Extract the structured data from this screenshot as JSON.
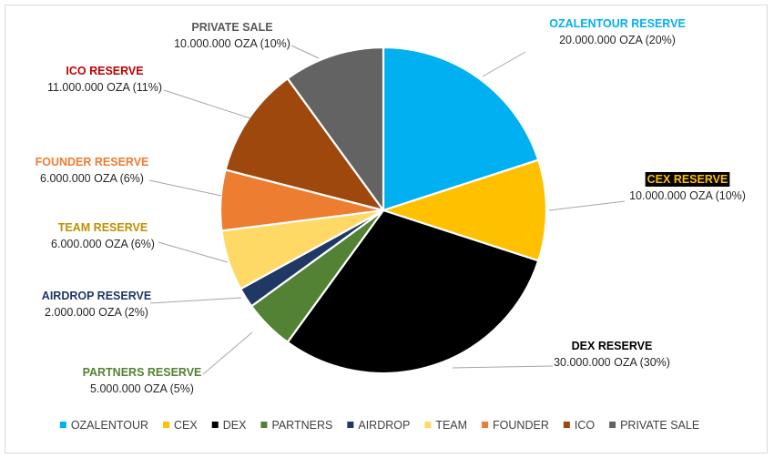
{
  "chart_data": {
    "type": "pie",
    "title": "",
    "start_angle_deg": 0,
    "direction": "clockwise",
    "slices": [
      {
        "legend": "OZALENTOUR",
        "label": "OZALENTOUR RESERVE",
        "value_text": "20.000.000 OZA (20%)",
        "value": 20000000,
        "percent": 20,
        "color": "#00b0f0",
        "label_color": "#00b0f0",
        "highlight": false
      },
      {
        "legend": "CEX",
        "label": "CEX RESERVE",
        "value_text": "10.000.000 OZA (10%)",
        "value": 10000000,
        "percent": 10,
        "color": "#ffc000",
        "label_color": "#ffc000",
        "highlight": true
      },
      {
        "legend": "DEX",
        "label": "DEX RESERVE",
        "value_text": "30.000.000 OZA (30%)",
        "value": 30000000,
        "percent": 30,
        "color": "#000000",
        "label_color": "#000000",
        "highlight": false
      },
      {
        "legend": "PARTNERS",
        "label": "PARTNERS RESERVE",
        "value_text": "5.000.000 OZA (5%)",
        "value": 5000000,
        "percent": 5,
        "color": "#548235",
        "label_color": "#548235",
        "highlight": false
      },
      {
        "legend": "AIRDROP",
        "label": "AIRDROP RESERVE",
        "value_text": "2.000.000 OZA (2%)",
        "value": 2000000,
        "percent": 2,
        "color": "#1f3864",
        "label_color": "#1f3864",
        "highlight": false
      },
      {
        "legend": "TEAM",
        "label": "TEAM RESERVE",
        "value_text": "6.000.000 OZA (6%)",
        "value": 6000000,
        "percent": 6,
        "color": "#ffd966",
        "label_color": "#bf9000",
        "highlight": false
      },
      {
        "legend": "FOUNDER",
        "label": "FOUNDER RESERVE",
        "value_text": "6.000.000 OZA (6%)",
        "value": 6000000,
        "percent": 6,
        "color": "#ed7d31",
        "label_color": "#ed7d31",
        "highlight": false
      },
      {
        "legend": "ICO",
        "label": "ICO RESERVE",
        "value_text": "11.000.000 OZA (11%)",
        "value": 11000000,
        "percent": 11,
        "color": "#9e480e",
        "label_color": "#c00000",
        "highlight": false
      },
      {
        "legend": "PRIVATE SALE",
        "label": "PRIVATE SALE",
        "value_text": "10.000.000 OZA (10%)",
        "value": 10000000,
        "percent": 10,
        "color": "#636363",
        "label_color": "#595959",
        "highlight": false
      }
    ],
    "legend_position": "bottom"
  }
}
